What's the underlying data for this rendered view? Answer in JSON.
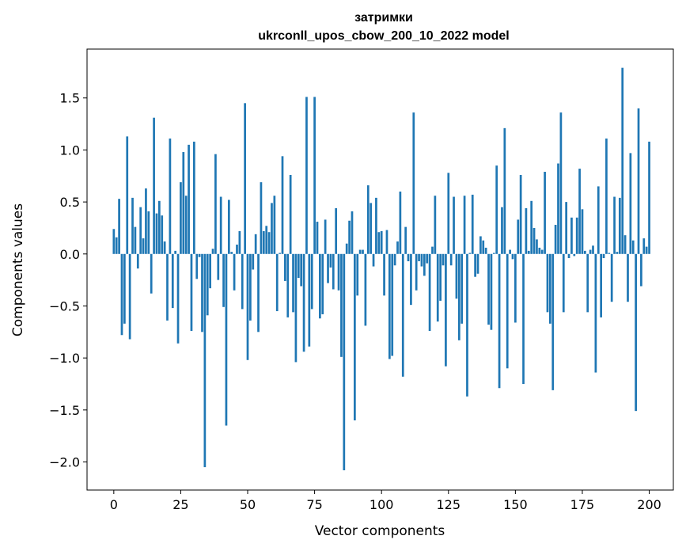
{
  "chart_data": {
    "type": "bar",
    "title": "затримки",
    "subtitle": "ukrconll_upos_cbow_200_10_2022 model",
    "xlabel": "Vector components",
    "ylabel": "Components values",
    "xlim": [
      -10,
      209
    ],
    "ylim": [
      -2.27,
      1.97
    ],
    "xticks": [
      0,
      25,
      50,
      75,
      100,
      125,
      150,
      175,
      200
    ],
    "xtick_labels": [
      "0",
      "25",
      "50",
      "75",
      "100",
      "125",
      "150",
      "175",
      "200"
    ],
    "yticks": [
      -2.0,
      -1.5,
      -1.0,
      -0.5,
      0.0,
      0.5,
      1.0,
      1.5
    ],
    "ytick_labels": [
      "−2.0",
      "−1.5",
      "−1.0",
      "−0.5",
      "0.0",
      "0.5",
      "1.0",
      "1.5"
    ],
    "bar_color": "#1f77b4",
    "grid": false,
    "legend": "none",
    "values": [
      0.24,
      0.16,
      0.53,
      -0.78,
      -0.67,
      1.13,
      -0.82,
      0.54,
      0.26,
      -0.14,
      0.45,
      0.15,
      0.63,
      0.41,
      -0.38,
      1.31,
      0.39,
      0.51,
      0.37,
      0.12,
      -0.64,
      1.11,
      -0.52,
      0.03,
      -0.86,
      0.69,
      0.98,
      0.56,
      1.05,
      -0.74,
      1.08,
      -0.24,
      -0.03,
      -0.75,
      -2.05,
      -0.59,
      -0.33,
      0.05,
      0.96,
      -0.25,
      0.55,
      -0.51,
      -1.65,
      0.52,
      0.02,
      -0.35,
      0.09,
      0.22,
      -0.53,
      1.45,
      -1.02,
      -0.64,
      -0.15,
      0.19,
      -0.75,
      0.69,
      0.22,
      0.27,
      0.21,
      0.49,
      0.56,
      -0.55,
      0.01,
      0.94,
      -0.26,
      -0.61,
      0.76,
      -0.56,
      -1.04,
      -0.23,
      -0.31,
      -0.94,
      1.51,
      -0.89,
      -0.53,
      1.51,
      0.31,
      -0.62,
      -0.58,
      0.33,
      -0.28,
      -0.13,
      -0.34,
      0.44,
      -0.35,
      -0.99,
      -2.08,
      0.1,
      0.32,
      0.41,
      -1.6,
      -0.4,
      0.04,
      0.04,
      -0.69,
      0.66,
      0.49,
      -0.12,
      0.54,
      0.21,
      0.22,
      -0.4,
      0.23,
      -1.01,
      -0.98,
      -0.11,
      0.12,
      0.6,
      -1.18,
      0.26,
      -0.07,
      -0.49,
      1.36,
      -0.35,
      -0.07,
      -0.12,
      -0.21,
      -0.09,
      -0.74,
      0.07,
      0.56,
      -0.65,
      -0.45,
      -0.11,
      -1.08,
      0.78,
      -0.11,
      0.55,
      -0.43,
      -0.83,
      -0.67,
      0.56,
      -1.37,
      0.01,
      0.57,
      -0.22,
      -0.19,
      0.17,
      0.13,
      0.06,
      -0.68,
      -0.73,
      0.01,
      0.85,
      -1.29,
      0.45,
      1.21,
      -1.1,
      0.04,
      -0.05,
      -0.66,
      0.33,
      0.76,
      -1.25,
      0.44,
      0.03,
      0.51,
      0.25,
      0.14,
      0.06,
      0.04,
      0.79,
      -0.56,
      -0.67,
      -1.31,
      0.28,
      0.87,
      1.36,
      -0.56,
      0.5,
      -0.04,
      0.35,
      -0.02,
      0.35,
      0.82,
      0.43,
      0.03,
      -0.56,
      0.04,
      0.08,
      -1.14,
      0.65,
      -0.61,
      -0.04,
      1.11,
      0.01,
      -0.46,
      0.55,
      0.02,
      0.54,
      1.79,
      0.18,
      -0.46,
      0.97,
      0.13,
      -1.51,
      1.4,
      -0.31,
      0.15,
      0.07,
      1.08
    ]
  }
}
